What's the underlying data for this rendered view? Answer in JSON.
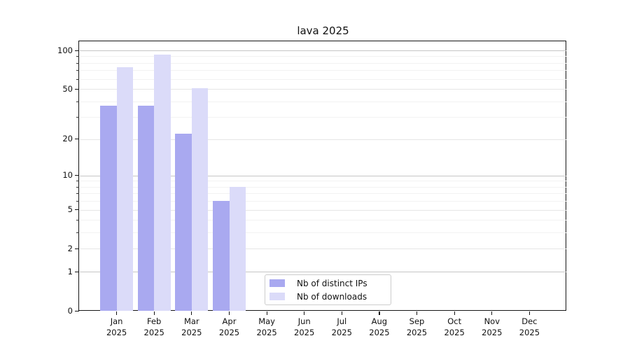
{
  "title": "lava 2025",
  "chart_data": {
    "type": "bar",
    "title": "lava 2025",
    "categories": [
      "Jan 2025",
      "Feb 2025",
      "Mar 2025",
      "Apr 2025",
      "May 2025",
      "Jun 2025",
      "Jul 2025",
      "Aug 2025",
      "Sep 2025",
      "Oct 2025",
      "Nov 2025",
      "Dec 2025"
    ],
    "months": [
      "Jan",
      "Feb",
      "Mar",
      "Apr",
      "May",
      "Jun",
      "Jul",
      "Aug",
      "Sep",
      "Oct",
      "Nov",
      "Dec"
    ],
    "year": "2025",
    "series": [
      {
        "name": "Nb of distinct IPs",
        "color": "#a9a9f0",
        "values": [
          37,
          37,
          22,
          6,
          0,
          0,
          0,
          0,
          0,
          0,
          0,
          0
        ]
      },
      {
        "name": "Nb of downloads",
        "color": "#dbdbf9",
        "values": [
          74,
          93,
          51,
          8,
          0,
          0,
          0,
          0,
          0,
          0,
          0,
          0
        ]
      }
    ],
    "yscale": "symlog-log1p",
    "yticks": [
      0,
      1,
      2,
      5,
      10,
      20,
      50,
      100
    ],
    "ytick_labels": [
      "0",
      "1",
      "2",
      "5",
      "10",
      "20",
      "50",
      "100"
    ],
    "major_grid_values": [
      1,
      10,
      100
    ],
    "labeled_minor_grid_values": [
      2,
      5,
      20,
      50
    ],
    "faint_minor_grid_values": [
      3,
      4,
      6,
      7,
      8,
      9,
      30,
      40,
      60,
      70,
      80,
      90
    ],
    "ylim": [
      0,
      100
    ],
    "grid": true,
    "legend_position": "bottom-center",
    "colors": {
      "grid_major": "#c6c6c6",
      "grid_minor": "#e6e6e6",
      "grid_faint": "#f2f2f2",
      "axis": "#161616",
      "text": "#111111",
      "background": "#ffffff"
    }
  }
}
